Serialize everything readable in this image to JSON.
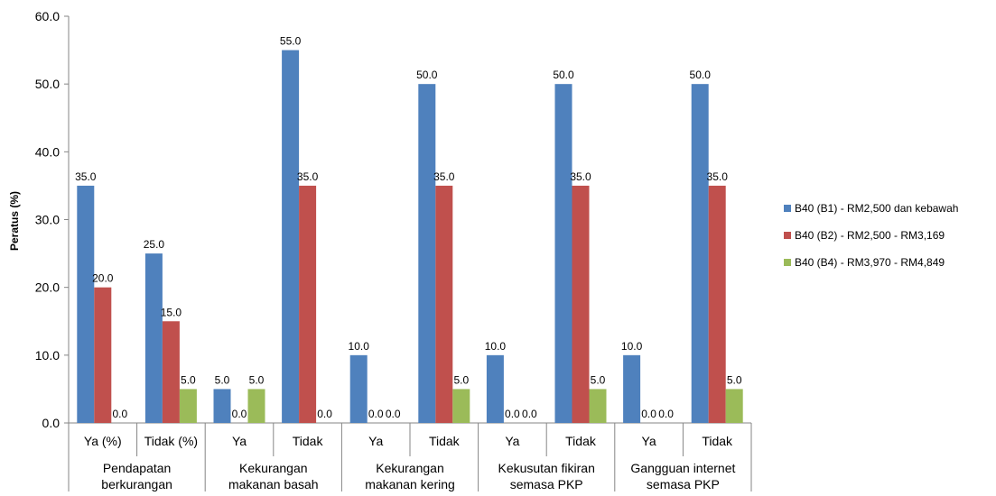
{
  "chart_data": {
    "type": "bar",
    "ylabel": "Peratus (%)",
    "ylim": [
      0,
      60
    ],
    "yticks": [
      "0.0",
      "10.0",
      "20.0",
      "30.0",
      "40.0",
      "50.0",
      "60.0"
    ],
    "grid": false,
    "legend_position": "right",
    "categories": [
      "Ya (%)",
      "Tidak (%)",
      "Ya",
      "Tidak",
      "Ya",
      "Tidak",
      "Ya",
      "Tidak",
      "Ya",
      "Tidak"
    ],
    "groups": [
      {
        "label": [
          "Pendapatan",
          "berkurangan"
        ],
        "span": 2
      },
      {
        "label": [
          "Kekurangan",
          "makanan basah"
        ],
        "span": 2
      },
      {
        "label": [
          "Kekurangan",
          "makanan kering"
        ],
        "span": 2
      },
      {
        "label": [
          "Kekusutan fikiran",
          "semasa PKP"
        ],
        "span": 2
      },
      {
        "label": [
          "Gangguan internet",
          "semasa PKP"
        ],
        "span": 2
      }
    ],
    "series": [
      {
        "name": "B40 (B1) - RM2,500 dan kebawah",
        "color": "#4F81BD",
        "values": [
          35.0,
          25.0,
          5.0,
          55.0,
          10.0,
          50.0,
          10.0,
          50.0,
          10.0,
          50.0
        ],
        "labels": [
          "35.0",
          "25.0",
          "5.0",
          "55.0",
          "10.0",
          "50.0",
          "10.0",
          "50.0",
          "10.0",
          "50.0"
        ]
      },
      {
        "name": "B40 (B2) - RM2,500 - RM3,169",
        "color": "#C0504D",
        "values": [
          20.0,
          15.0,
          0.0,
          35.0,
          0.0,
          35.0,
          0.0,
          35.0,
          0.0,
          35.0
        ],
        "labels": [
          "20.0",
          "15.0",
          "0.0",
          "35.0",
          "0.0",
          "35.0",
          "0.0",
          "35.0",
          "0.0",
          "35.0"
        ]
      },
      {
        "name": "B40 (B4) - RM3,970 - RM4,849",
        "color": "#9BBB59",
        "values": [
          0.0,
          5.0,
          5.0,
          0.0,
          0.0,
          5.0,
          0.0,
          5.0,
          0.0,
          5.0
        ],
        "labels": [
          "0.0",
          "5.0",
          "5.0",
          "0.0",
          "0.0",
          "5.0",
          "0.0",
          "5.0",
          "0.0",
          "5.0"
        ]
      }
    ]
  }
}
